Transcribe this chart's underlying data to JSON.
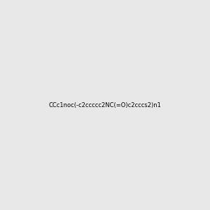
{
  "smiles": "CCc1noc(-c2ccccc2NC(=O)c2cccs2)n1",
  "image_size": 300,
  "background_color": "#e8e8e8"
}
